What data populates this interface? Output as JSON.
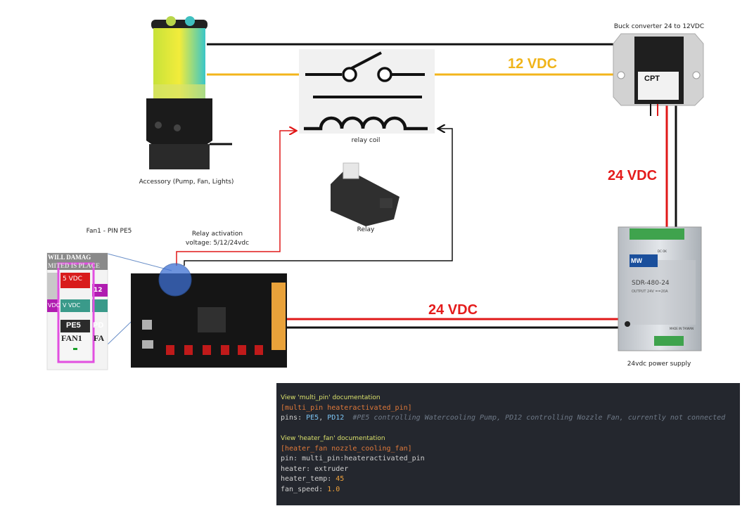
{
  "labels": {
    "accessory": "Accessory (Pump, Fan, Lights)",
    "relay_coil": "relay coil",
    "relay": "Relay",
    "buck_converter": "Buck converter 24 to 12VDC",
    "power_supply": "24vdc power supply",
    "fan1_pin": "Fan1 - PIN PE5",
    "relay_activation_1": "Relay activation",
    "relay_activation_2": "voltage: 5/12/24vdc"
  },
  "voltages": {
    "v12": "12 VDC",
    "v24_vertical": "24 VDC",
    "v24_horizontal": "24 VDC"
  },
  "device_text": {
    "cpt_logo": "CPT",
    "psu_model": "SDR-480-24",
    "psu_brand": "MW",
    "psu_origin": "MADE IN TAIWAN",
    "psu_output": "OUTPUT 24V ==20A",
    "psu_dcok": "DC OK",
    "zoom_5vdc": "5 VDC",
    "zoom_vvdc": "V VDC",
    "zoom_pe5": "PE5",
    "zoom_fan1": "FAN1",
    "zoom_pd": "PD",
    "zoom_12": "12",
    "zoom_fa": "FA",
    "zoom_vdc": "VDC",
    "zoom_warning": "WILL DAMAG",
    "zoom_warning2": "MITED IS PLACE"
  },
  "code": {
    "doc1": "View 'multi_pin' documentation",
    "section1": "[multi_pin heateractivated_pin]",
    "pins_key": "pins: ",
    "pins_val1": "PE5",
    "pins_sep": ", ",
    "pins_val2": "PD12",
    "pins_comment": "  #PE5 controlling Watercooling Pump, PD12 controlling Nozzle Fan, currently not connected",
    "doc2": "View 'heater_fan' documentation",
    "section2": "[heater_fan nozzle_cooling_fan]",
    "pin_line": "pin: multi_pin:heateractivated_pin",
    "heater_line": "heater: extruder",
    "temp_key": "heater_temp: ",
    "temp_val": "45",
    "speed_key": "fan_speed: ",
    "speed_val": "1.0"
  },
  "colors": {
    "wire_black": "#111111",
    "wire_red": "#e01818",
    "wire_yellow": "#f3b51b",
    "voltage_red": "#e41b1b",
    "voltage_yellow": "#f0b419",
    "zoom_frame": "#e24fe0",
    "code_bg": "#24272e"
  },
  "icons": [
    "relay-switch-icon",
    "relay-coil-icon"
  ]
}
